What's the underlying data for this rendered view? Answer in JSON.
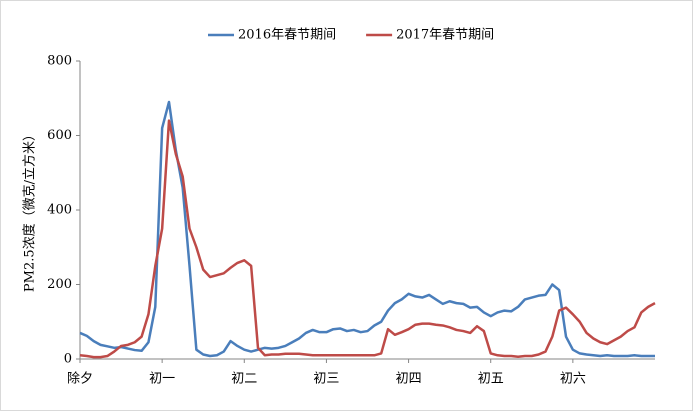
{
  "chart_data": {
    "type": "line",
    "ylabel": "PM2.5浓度（微克/立方米）",
    "x": [
      0,
      2,
      4,
      6,
      8,
      10,
      12,
      14,
      16,
      18,
      20,
      22,
      24,
      26,
      28,
      30,
      32,
      34,
      36,
      38,
      40,
      42,
      44,
      46,
      48,
      50,
      52,
      54,
      56,
      58,
      60,
      62,
      64,
      66,
      68,
      70,
      72,
      74,
      76,
      78,
      80,
      82,
      84,
      86,
      88,
      90,
      92,
      94,
      96,
      98,
      100,
      102,
      104,
      106,
      108,
      110,
      112,
      114,
      116,
      118,
      120,
      122,
      124,
      126,
      128,
      130,
      132,
      134,
      136,
      138,
      140,
      142,
      144,
      146,
      148,
      150,
      152,
      154,
      156,
      158,
      160,
      162,
      164,
      166,
      168
    ],
    "series": [
      {
        "name": "2016年春节期间",
        "color": "#4a7ebb",
        "values": [
          70,
          62,
          48,
          38,
          34,
          30,
          32,
          28,
          24,
          22,
          45,
          140,
          620,
          690,
          560,
          460,
          250,
          25,
          12,
          8,
          10,
          20,
          48,
          35,
          25,
          20,
          25,
          30,
          28,
          30,
          35,
          45,
          55,
          70,
          78,
          72,
          72,
          80,
          82,
          75,
          78,
          72,
          75,
          90,
          100,
          130,
          150,
          160,
          175,
          168,
          165,
          172,
          160,
          148,
          155,
          150,
          148,
          138,
          140,
          125,
          115,
          125,
          130,
          128,
          140,
          160,
          165,
          170,
          172,
          200,
          185,
          60,
          25,
          15,
          12,
          10,
          8,
          10,
          8,
          8,
          8,
          10,
          8,
          8,
          8
        ]
      },
      {
        "name": "2017年春节期间",
        "color": "#be4b48",
        "values": [
          10,
          8,
          5,
          5,
          8,
          20,
          35,
          38,
          45,
          60,
          120,
          250,
          350,
          640,
          550,
          490,
          350,
          300,
          240,
          220,
          225,
          230,
          245,
          258,
          265,
          250,
          30,
          10,
          12,
          12,
          14,
          14,
          14,
          12,
          10,
          10,
          10,
          10,
          10,
          10,
          10,
          10,
          10,
          10,
          15,
          80,
          65,
          72,
          80,
          92,
          95,
          95,
          92,
          90,
          85,
          78,
          75,
          70,
          88,
          75,
          15,
          10,
          8,
          8,
          6,
          8,
          8,
          12,
          20,
          60,
          130,
          138,
          120,
          100,
          70,
          55,
          45,
          40,
          50,
          60,
          75,
          85,
          125,
          140,
          150
        ]
      }
    ],
    "xlim": [
      0,
      168
    ],
    "xticks": [
      {
        "value": 0,
        "label": "除夕"
      },
      {
        "value": 24,
        "label": "初一"
      },
      {
        "value": 48,
        "label": "初二"
      },
      {
        "value": 72,
        "label": "初三"
      },
      {
        "value": 96,
        "label": "初四"
      },
      {
        "value": 120,
        "label": "初五"
      },
      {
        "value": 144,
        "label": "初六"
      }
    ],
    "ylim": [
      0,
      800
    ],
    "yticks": [
      0,
      200,
      400,
      600,
      800
    ],
    "legend": "top",
    "grid": false
  }
}
